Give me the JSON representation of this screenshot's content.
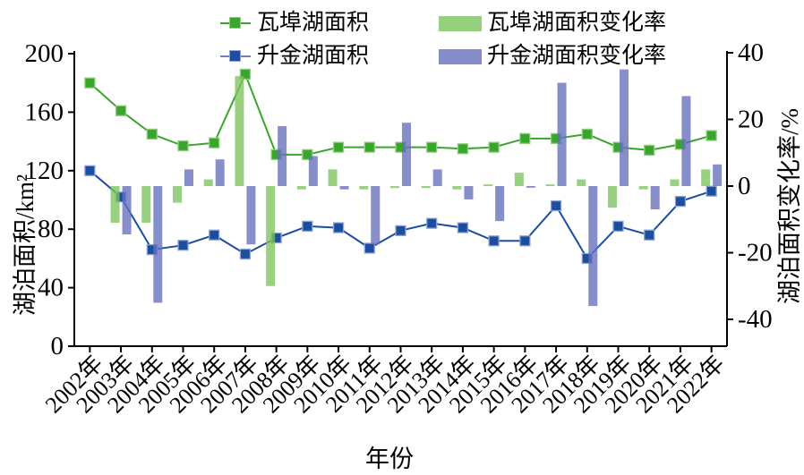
{
  "legend": [
    {
      "label": "瓦埠湖面积",
      "type": "line",
      "color": "#3aa52d"
    },
    {
      "label": "升金湖面积",
      "type": "line",
      "color": "#1c4ea0"
    },
    {
      "label": "瓦埠湖面积变化率",
      "type": "bar",
      "color": "#96cf7e"
    },
    {
      "label": "升金湖面积变化率",
      "type": "bar",
      "color": "#848dca"
    }
  ],
  "chart_data": {
    "type": "line+bar combo, dual axis",
    "xlabel": "年份",
    "x_categories": [
      "2002年",
      "2003年",
      "2004年",
      "2005年",
      "2006年",
      "2007年",
      "2008年",
      "2009年",
      "2010年",
      "2011年",
      "2012年",
      "2013年",
      "2014年",
      "2015年",
      "2016年",
      "2017年",
      "2018年",
      "2019年",
      "2020年",
      "2021年",
      "2022年"
    ],
    "left_axis": {
      "label": "湖泊面积/km²",
      "ticks": [
        0,
        40,
        80,
        120,
        160,
        200
      ],
      "range": [
        0,
        200
      ]
    },
    "right_axis": {
      "label": "湖泊面积变化率/%",
      "ticks": [
        -40,
        -20,
        0,
        20,
        40
      ],
      "range": [
        -48,
        40
      ]
    },
    "grid": false,
    "legend_position": "top",
    "series": [
      {
        "name": "瓦埠湖面积",
        "type": "line",
        "axis": "left",
        "color": "#3aa52d",
        "marker_edge": "#8fce7f",
        "values": [
          180,
          161,
          145,
          137,
          139,
          186,
          131,
          131,
          136,
          136,
          136,
          136,
          135,
          136,
          142,
          142,
          145,
          136,
          134,
          138,
          144
        ]
      },
      {
        "name": "升金湖面积",
        "type": "line",
        "axis": "left",
        "color": "#1c4ea0",
        "marker_edge": "#8fa3d4",
        "values": [
          120,
          102,
          66,
          69,
          76,
          63,
          74,
          82,
          81,
          67,
          79,
          84,
          81,
          72,
          72,
          96,
          60,
          82,
          76,
          99,
          106
        ]
      },
      {
        "name": "瓦埠湖面积变化率",
        "type": "bar",
        "axis": "right",
        "color": "#7cc35e",
        "values": [
          null,
          -11,
          -11,
          -5,
          2,
          33,
          -30,
          -1,
          5,
          -1,
          -0.6,
          -0.6,
          -1,
          0.5,
          4,
          0.5,
          2,
          -6.5,
          -1,
          2,
          5
        ]
      },
      {
        "name": "升金湖面积变化率",
        "type": "bar",
        "axis": "right",
        "color": "#6570bd",
        "values": [
          null,
          -14.5,
          -35,
          5,
          8,
          -17.5,
          18,
          9,
          -1,
          -17.5,
          19,
          5,
          -4,
          -10.5,
          -0.5,
          31,
          -36,
          35,
          -7,
          27,
          6.5
        ]
      }
    ]
  }
}
